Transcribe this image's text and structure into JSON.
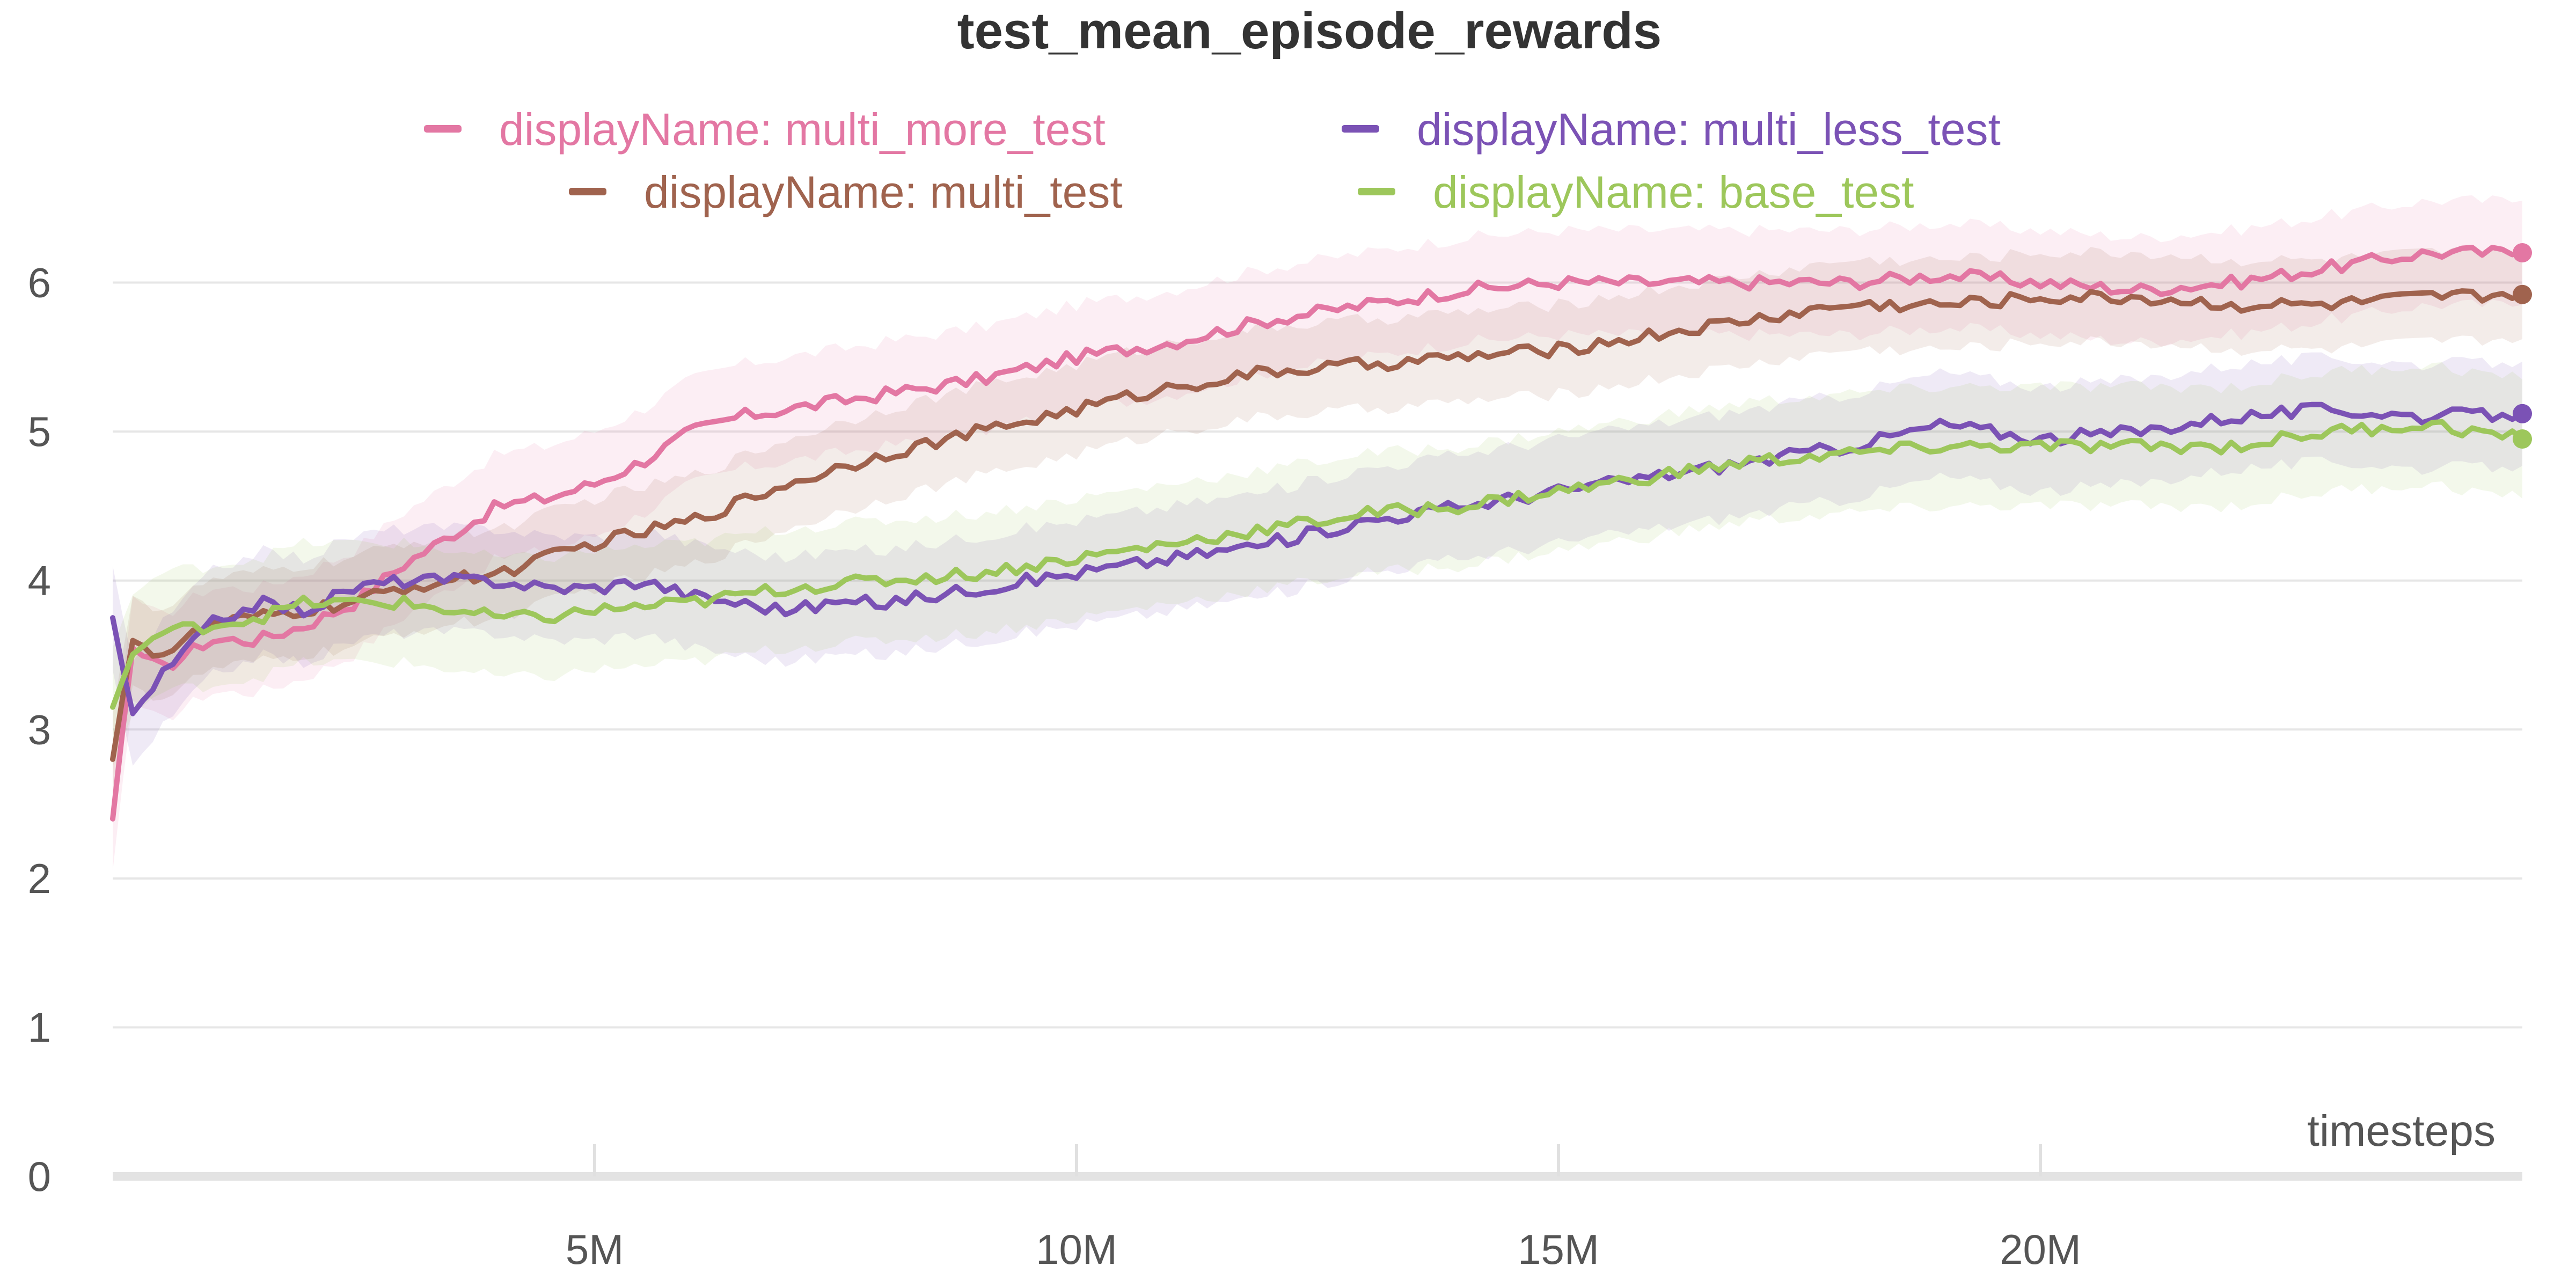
{
  "chart_data": {
    "type": "line",
    "title": "test_mean_episode_rewards",
    "xlabel": "timesteps",
    "ylabel": "",
    "xlim": [
      0,
      25000000
    ],
    "ylim": [
      0,
      6.6
    ],
    "grid": true,
    "legend_position": "top",
    "yticks": [
      {
        "value": 0,
        "label": "0"
      },
      {
        "value": 1,
        "label": "1"
      },
      {
        "value": 2,
        "label": "2"
      },
      {
        "value": 3,
        "label": "3"
      },
      {
        "value": 4,
        "label": "4"
      },
      {
        "value": 5,
        "label": "5"
      },
      {
        "value": 6,
        "label": "6"
      }
    ],
    "xticks": [
      {
        "value": 5000000,
        "label": "5M"
      },
      {
        "value": 10000000,
        "label": "10M"
      },
      {
        "value": 15000000,
        "label": "15M"
      },
      {
        "value": 20000000,
        "label": "20M"
      }
    ],
    "series": [
      {
        "name": "displayName: multi_more_test",
        "color": "#e377a3",
        "x": [
          0,
          200000,
          500000,
          1000000,
          1500000,
          2000000,
          2500000,
          3000000,
          3500000,
          4000000,
          4500000,
          5000000,
          5500000,
          6000000,
          6500000,
          7000000,
          7500000,
          8000000,
          9000000,
          10000000,
          11000000,
          12000000,
          13000000,
          14000000,
          15000000,
          16000000,
          17000000,
          18000000,
          19000000,
          20000000,
          21000000,
          22000000,
          23000000,
          24000000,
          25000000
        ],
        "values": [
          2.4,
          3.55,
          3.4,
          3.6,
          3.6,
          3.7,
          3.85,
          4.1,
          4.3,
          4.5,
          4.55,
          4.65,
          4.8,
          5.0,
          5.1,
          5.15,
          5.2,
          5.25,
          5.35,
          5.5,
          5.6,
          5.75,
          5.85,
          5.95,
          6.0,
          6.0,
          6.0,
          6.0,
          6.05,
          6.0,
          5.95,
          6.0,
          6.1,
          6.2,
          6.2
        ],
        "spread": 0.35
      },
      {
        "name": "displayName: multi_test",
        "color": "#a0634e",
        "x": [
          0,
          200000,
          500000,
          1000000,
          1500000,
          2000000,
          2500000,
          3000000,
          3500000,
          4000000,
          4500000,
          5000000,
          6000000,
          7000000,
          8000000,
          9000000,
          10000000,
          11000000,
          12000000,
          13000000,
          14000000,
          15000000,
          16000000,
          17000000,
          18000000,
          19000000,
          20000000,
          21000000,
          22000000,
          23000000,
          24000000,
          25000000
        ],
        "values": [
          2.8,
          3.6,
          3.5,
          3.7,
          3.75,
          3.8,
          3.85,
          3.95,
          4.0,
          4.05,
          4.15,
          4.25,
          4.4,
          4.65,
          4.85,
          5.0,
          5.15,
          5.3,
          5.4,
          5.45,
          5.5,
          5.55,
          5.65,
          5.75,
          5.85,
          5.85,
          5.9,
          5.9,
          5.85,
          5.85,
          5.9,
          5.92
        ],
        "spread": 0.3
      },
      {
        "name": "displayName: multi_less_test",
        "color": "#7b52b5",
        "x": [
          0,
          200000,
          500000,
          1000000,
          1500000,
          2000000,
          2500000,
          3000000,
          3500000,
          4000000,
          4500000,
          5000000,
          5500000,
          6000000,
          7000000,
          7500000,
          8000000,
          9000000,
          10000000,
          11000000,
          12000000,
          13000000,
          14000000,
          15000000,
          16000000,
          17000000,
          18000000,
          19000000,
          20000000,
          21000000,
          22000000,
          23000000,
          24000000,
          25000000
        ],
        "values": [
          3.75,
          3.1,
          3.35,
          3.7,
          3.85,
          3.8,
          3.95,
          4.0,
          4.0,
          4.0,
          3.95,
          3.95,
          4.0,
          3.9,
          3.8,
          3.85,
          3.85,
          3.95,
          4.05,
          4.15,
          4.25,
          4.4,
          4.5,
          4.6,
          4.7,
          4.8,
          4.9,
          5.05,
          4.95,
          5.0,
          5.1,
          5.15,
          5.1,
          5.12
        ],
        "spread": 0.35
      },
      {
        "name": "displayName: base_test",
        "color": "#9dc75b",
        "x": [
          0,
          200000,
          500000,
          1000000,
          1500000,
          2000000,
          2500000,
          3000000,
          3500000,
          4000000,
          4500000,
          5000000,
          6000000,
          7000000,
          8000000,
          9000000,
          10000000,
          11000000,
          12000000,
          13000000,
          14000000,
          15000000,
          16000000,
          17000000,
          18000000,
          19000000,
          20000000,
          21000000,
          22000000,
          23000000,
          24000000,
          25000000
        ],
        "values": [
          3.15,
          3.5,
          3.65,
          3.7,
          3.75,
          3.85,
          3.85,
          3.85,
          3.8,
          3.75,
          3.75,
          3.8,
          3.85,
          3.95,
          4.0,
          4.05,
          4.15,
          4.25,
          4.35,
          4.45,
          4.5,
          4.6,
          4.7,
          4.8,
          4.85,
          4.9,
          4.9,
          4.9,
          4.9,
          5.0,
          5.05,
          4.95
        ],
        "spread": 0.4
      }
    ]
  }
}
